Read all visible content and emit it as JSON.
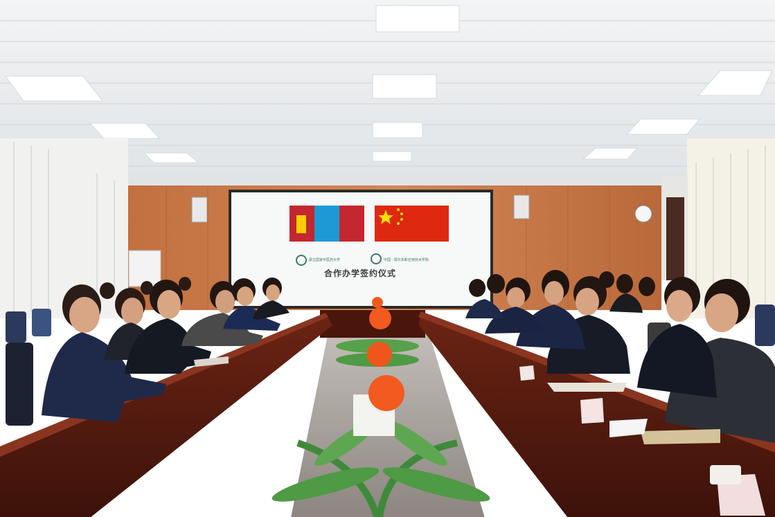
{
  "screen": {
    "title": "合作办学签约仪式",
    "subtitle": "",
    "left_flag": "mongolia-flag",
    "right_flag": "china-flag",
    "left_logo_label": "蒙古国家中医药大学",
    "right_logo_label": "中国 · 鄂尔多斯应用技术学院"
  },
  "colors": {
    "ceiling": "#e9ecef",
    "wood_wall": "#c77c4b",
    "table": "#5a1d12",
    "suit": "#1f2a44",
    "flower": "#f25a1f",
    "leaf": "#3f8a3a"
  }
}
